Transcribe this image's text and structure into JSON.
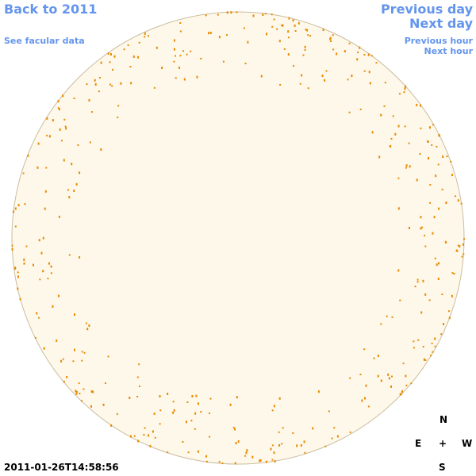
{
  "nav": {
    "back": "Back to 2011",
    "facular": "See facular data",
    "previous_day": "Previous day",
    "next_day": "Next day",
    "previous_hour": "Previous hour",
    "next_hour": "Next hour"
  },
  "timestamp": "2011-01-26T14:58:56",
  "compass": {
    "north": "N",
    "east": "E",
    "center": "+",
    "west": "W",
    "south": "S"
  }
}
